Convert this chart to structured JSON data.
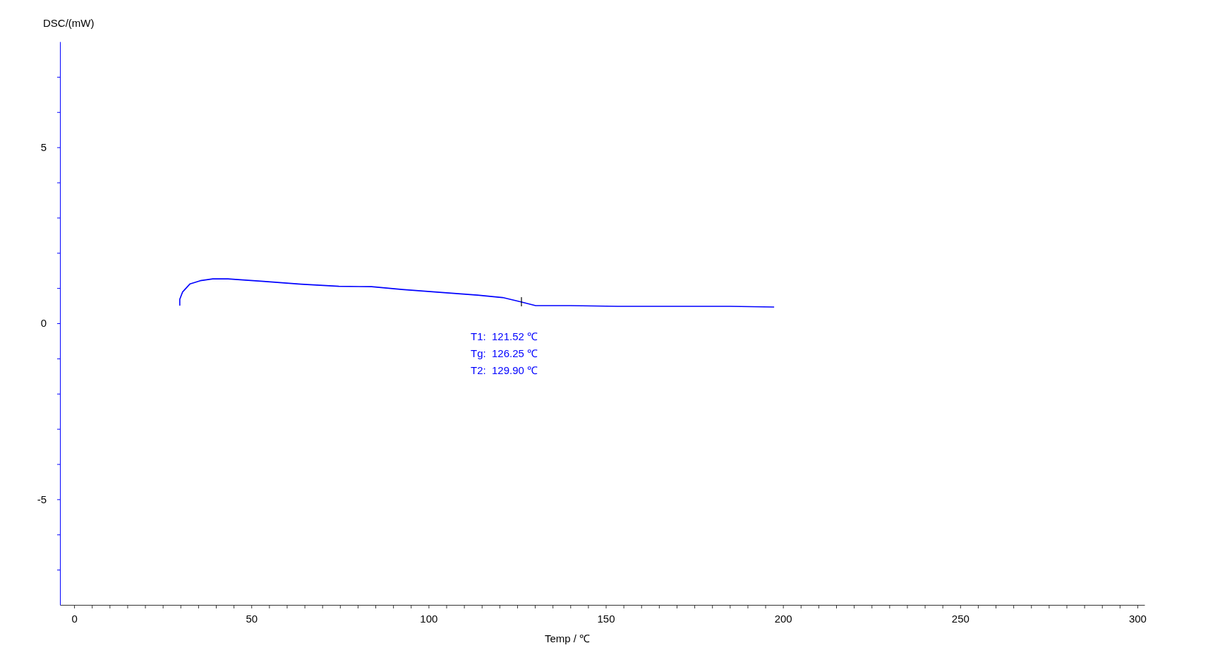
{
  "chart_data": {
    "type": "line",
    "xlabel": "Temp / ℃",
    "ylabel": "DSC/(mW)",
    "xlim": [
      -4,
      302
    ],
    "ylim": [
      -8,
      8
    ],
    "xticks": [
      {
        "value": 0,
        "label": "0"
      },
      {
        "value": 5,
        "label": null
      },
      {
        "value": 10,
        "label": null
      },
      {
        "value": 15,
        "label": null
      },
      {
        "value": 20,
        "label": null
      },
      {
        "value": 25,
        "label": null
      },
      {
        "value": 30,
        "label": null
      },
      {
        "value": 35,
        "label": null
      },
      {
        "value": 40,
        "label": null
      },
      {
        "value": 45,
        "label": null
      },
      {
        "value": 50,
        "label": "50"
      },
      {
        "value": 55,
        "label": null
      },
      {
        "value": 60,
        "label": null
      },
      {
        "value": 65,
        "label": null
      },
      {
        "value": 70,
        "label": null
      },
      {
        "value": 75,
        "label": null
      },
      {
        "value": 80,
        "label": null
      },
      {
        "value": 85,
        "label": null
      },
      {
        "value": 90,
        "label": null
      },
      {
        "value": 95,
        "label": null
      },
      {
        "value": 100,
        "label": "100"
      },
      {
        "value": 105,
        "label": null
      },
      {
        "value": 110,
        "label": null
      },
      {
        "value": 115,
        "label": null
      },
      {
        "value": 120,
        "label": null
      },
      {
        "value": 125,
        "label": null
      },
      {
        "value": 130,
        "label": null
      },
      {
        "value": 135,
        "label": null
      },
      {
        "value": 140,
        "label": null
      },
      {
        "value": 145,
        "label": null
      },
      {
        "value": 150,
        "label": "150"
      },
      {
        "value": 155,
        "label": null
      },
      {
        "value": 160,
        "label": null
      },
      {
        "value": 165,
        "label": null
      },
      {
        "value": 170,
        "label": null
      },
      {
        "value": 175,
        "label": null
      },
      {
        "value": 180,
        "label": null
      },
      {
        "value": 185,
        "label": null
      },
      {
        "value": 190,
        "label": null
      },
      {
        "value": 195,
        "label": null
      },
      {
        "value": 200,
        "label": "200"
      },
      {
        "value": 205,
        "label": null
      },
      {
        "value": 210,
        "label": null
      },
      {
        "value": 215,
        "label": null
      },
      {
        "value": 220,
        "label": null
      },
      {
        "value": 225,
        "label": null
      },
      {
        "value": 230,
        "label": null
      },
      {
        "value": 235,
        "label": null
      },
      {
        "value": 240,
        "label": null
      },
      {
        "value": 245,
        "label": null
      },
      {
        "value": 250,
        "label": "250"
      },
      {
        "value": 255,
        "label": null
      },
      {
        "value": 260,
        "label": null
      },
      {
        "value": 265,
        "label": null
      },
      {
        "value": 270,
        "label": null
      },
      {
        "value": 275,
        "label": null
      },
      {
        "value": 280,
        "label": null
      },
      {
        "value": 285,
        "label": null
      },
      {
        "value": 290,
        "label": null
      },
      {
        "value": 295,
        "label": null
      },
      {
        "value": 300,
        "label": "300"
      }
    ],
    "yticks": [
      {
        "value": -7,
        "label": null
      },
      {
        "value": -6,
        "label": null
      },
      {
        "value": -5,
        "label": "-5"
      },
      {
        "value": -4,
        "label": null
      },
      {
        "value": -3,
        "label": null
      },
      {
        "value": -2,
        "label": null
      },
      {
        "value": -1,
        "label": null
      },
      {
        "value": 0,
        "label": "0"
      },
      {
        "value": 1,
        "label": null
      },
      {
        "value": 2,
        "label": null
      },
      {
        "value": 3,
        "label": null
      },
      {
        "value": 4,
        "label": null
      },
      {
        "value": 5,
        "label": "5"
      },
      {
        "value": 6,
        "label": null
      },
      {
        "value": 7,
        "label": null
      }
    ],
    "grid": false,
    "marker": "none",
    "line_style": "solid",
    "series": [
      {
        "color": "#0000ff",
        "x": [
          29.8,
          29.8,
          30.6,
          32.7,
          35.6,
          39.1,
          43.4,
          53.4,
          64.0,
          74.7,
          83.9,
          92.5,
          103.1,
          113.8,
          120.9,
          125.9,
          130.2,
          140,
          153.3,
          160,
          175,
          185,
          197.5
        ],
        "values": [
          0.5,
          0.68,
          0.89,
          1.12,
          1.21,
          1.26,
          1.26,
          1.19,
          1.11,
          1.05,
          1.04,
          0.96,
          0.88,
          0.8,
          0.73,
          0.61,
          0.5,
          0.5,
          0.48,
          0.48,
          0.48,
          0.48,
          0.46
        ]
      }
    ],
    "annotations": [
      "T1:  121.52 ℃",
      "Tg:  126.25 ℃",
      "T2:  129.90 ℃"
    ]
  }
}
